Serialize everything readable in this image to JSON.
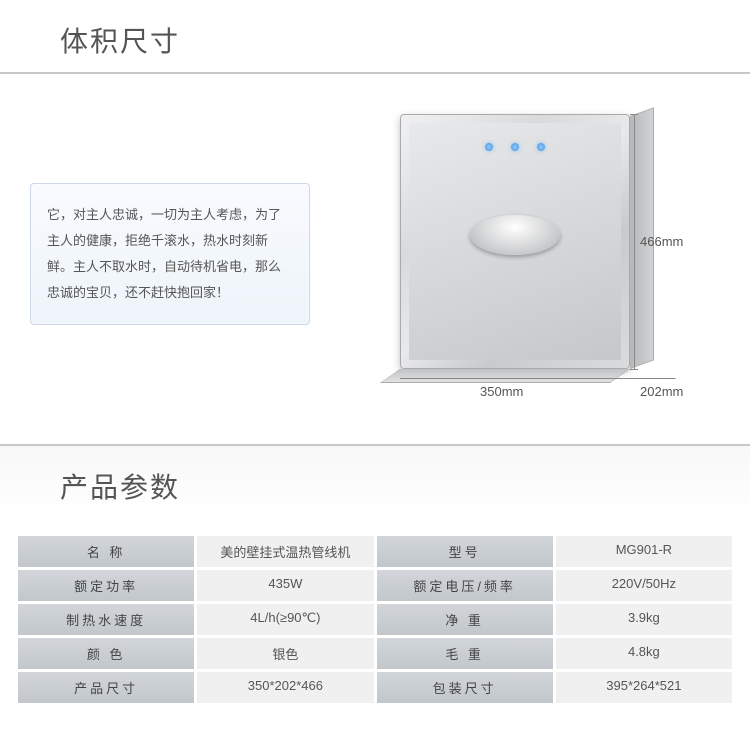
{
  "sections": {
    "dimensions_title": "体积尺寸",
    "params_title": "产品参数"
  },
  "description": "它，对主人忠诚，一切为主人考虑，为了主人的健康，拒绝千滚水，热水时刻新鲜。主人不取水时，自动待机省电，那么忠诚的宝贝，还不赶快抱回家！",
  "dimensions": {
    "height": "466mm",
    "width": "350mm",
    "depth": "202mm"
  },
  "specs": [
    {
      "label1": "名 称",
      "value1": "美的壁挂式温热管线机",
      "label2": "型号",
      "value2": "MG901-R"
    },
    {
      "label1": "额定功率",
      "value1": "435W",
      "label2": "额定电压/频率",
      "value2": "220V/50Hz"
    },
    {
      "label1": "制热水速度",
      "value1": "4L/h(≥90℃)",
      "label2": "净 重",
      "value2": "3.9kg"
    },
    {
      "label1": "颜 色",
      "value1": "银色",
      "label2": "毛 重",
      "value2": "4.8kg"
    },
    {
      "label1": "产品尺寸",
      "value1": "350*202*466",
      "label2": "包装尺寸",
      "value2": "395*264*521"
    }
  ],
  "colors": {
    "header_text": "#555555",
    "divider": "#c8c8c8",
    "desc_bg_top": "#f8fbfe",
    "desc_bg_bottom": "#eef4fa",
    "desc_border": "#cdd8e4",
    "product_silver_light": "#e8e9ea",
    "product_silver_dark": "#c5c7c9",
    "led_color": "#4a90d9",
    "spec_label_bg": "#c2c7cc",
    "spec_value_bg": "#f0f0f0"
  }
}
